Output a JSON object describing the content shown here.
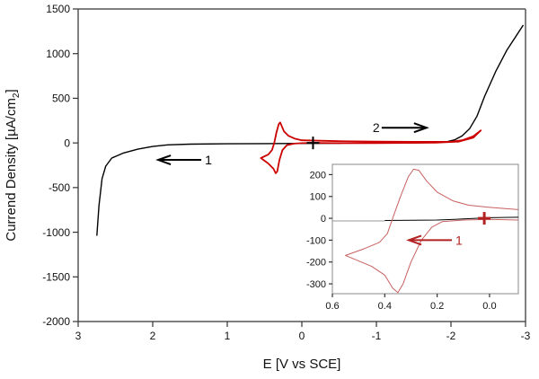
{
  "chart_data": [
    {
      "type": "line",
      "xlabel": "E [V vs SCE]",
      "ylabel": "Currend Density [µA/cm2]",
      "xlim": [
        3,
        -3
      ],
      "ylim": [
        -2000,
        1500
      ],
      "x_reversed": true,
      "xticks": [
        3,
        2,
        1,
        0,
        -1,
        -2,
        -3
      ],
      "yticks": [
        1500,
        1000,
        500,
        0,
        -500,
        -1000,
        -1500,
        -2000
      ],
      "grid": false,
      "annotations": [
        {
          "text": "1",
          "arrow": "left",
          "x": 1.3,
          "y": -190
        },
        {
          "text": "2",
          "arrow": "right",
          "x": -0.95,
          "y": 170
        }
      ],
      "marker": {
        "symbol": "+",
        "x": -0.15,
        "y": 0
      },
      "series": [
        {
          "color": "#000000",
          "points": [
            [
              2.75,
              -1040
            ],
            [
              2.72,
              -700
            ],
            [
              2.68,
              -400
            ],
            [
              2.63,
              -260
            ],
            [
              2.55,
              -170
            ],
            [
              2.4,
              -115
            ],
            [
              2.2,
              -70
            ],
            [
              2.0,
              -40
            ],
            [
              1.8,
              -22
            ],
            [
              1.5,
              -14
            ],
            [
              1.0,
              -10
            ],
            [
              0.5,
              -8
            ],
            [
              0,
              -6
            ],
            [
              -0.5,
              -4
            ],
            [
              -1,
              -2
            ],
            [
              -1.5,
              0
            ],
            [
              -1.8,
              5
            ],
            [
              -1.95,
              15
            ],
            [
              -2.05,
              35
            ],
            [
              -2.15,
              80
            ],
            [
              -2.25,
              160
            ],
            [
              -2.35,
              300
            ],
            [
              -2.45,
              520
            ],
            [
              -2.6,
              800
            ],
            [
              -2.75,
              1040
            ],
            [
              -2.9,
              1230
            ],
            [
              -2.97,
              1320
            ]
          ]
        },
        {
          "color": "#cc0000",
          "points": [
            [
              -0.15,
              0
            ],
            [
              0,
              -3
            ],
            [
              0.1,
              -8
            ],
            [
              0.2,
              -25
            ],
            [
              0.26,
              -80
            ],
            [
              0.3,
              -190
            ],
            [
              0.33,
              -320
            ],
            [
              0.35,
              -340
            ],
            [
              0.38,
              -290
            ],
            [
              0.45,
              -230
            ],
            [
              0.55,
              -170
            ],
            [
              0.45,
              -130
            ],
            [
              0.4,
              -80
            ],
            [
              0.37,
              0
            ],
            [
              0.34,
              120
            ],
            [
              0.31,
              210
            ],
            [
              0.29,
              230
            ],
            [
              0.27,
              190
            ],
            [
              0.24,
              130
            ],
            [
              0.18,
              80
            ],
            [
              0.1,
              50
            ],
            [
              0,
              30
            ],
            [
              -0.5,
              20
            ],
            [
              -1,
              15
            ],
            [
              -1.5,
              12
            ],
            [
              -2,
              14
            ],
            [
              -2.15,
              30
            ],
            [
              -2.3,
              75
            ],
            [
              -2.4,
              140
            ],
            [
              -2.3,
              60
            ],
            [
              -2.1,
              15
            ],
            [
              -1.8,
              3
            ],
            [
              -1,
              -2
            ],
            [
              -0.5,
              -3
            ],
            [
              -0.15,
              0
            ]
          ]
        }
      ]
    },
    {
      "type": "line",
      "inset": true,
      "xlim": [
        0.6,
        -0.11
      ],
      "ylim": [
        -345,
        247
      ],
      "x_reversed": true,
      "xticks": [
        "0.6",
        "0.4",
        "0.2",
        "0.0"
      ],
      "yticks": [
        200,
        100,
        0,
        -100,
        -200,
        -300
      ],
      "grid": false,
      "annotations": [
        {
          "text": "1",
          "arrow": "left",
          "x": 0.13,
          "y": -100,
          "color": "#b22222"
        }
      ],
      "marker": {
        "symbol": "+",
        "x": 0.02,
        "y": 0,
        "color": "#b22222"
      },
      "series": [
        {
          "color": "#999999",
          "points": [
            [
              0.6,
              -12
            ],
            [
              0.4,
              -12
            ]
          ]
        },
        {
          "color": "#000000",
          "points": [
            [
              0.4,
              -10
            ],
            [
              0.2,
              -8
            ],
            [
              0.1,
              -3
            ],
            [
              0,
              3
            ],
            [
              -0.11,
              5
            ]
          ]
        },
        {
          "color": "#c86060",
          "points": [
            [
              -0.11,
              -8
            ],
            [
              0,
              -5
            ],
            [
              0.1,
              -8
            ],
            [
              0.18,
              -15
            ],
            [
              0.22,
              -40
            ],
            [
              0.26,
              -100
            ],
            [
              0.3,
              -200
            ],
            [
              0.33,
              -300
            ],
            [
              0.35,
              -340
            ],
            [
              0.37,
              -320
            ],
            [
              0.4,
              -260
            ],
            [
              0.45,
              -220
            ],
            [
              0.55,
              -170
            ],
            [
              0.48,
              -140
            ],
            [
              0.42,
              -110
            ],
            [
              0.39,
              -70
            ],
            [
              0.37,
              0
            ],
            [
              0.34,
              100
            ],
            [
              0.31,
              190
            ],
            [
              0.29,
              225
            ],
            [
              0.27,
              220
            ],
            [
              0.24,
              170
            ],
            [
              0.2,
              120
            ],
            [
              0.14,
              80
            ],
            [
              0.08,
              60
            ],
            [
              0,
              50
            ],
            [
              -0.11,
              40
            ]
          ]
        }
      ]
    }
  ]
}
